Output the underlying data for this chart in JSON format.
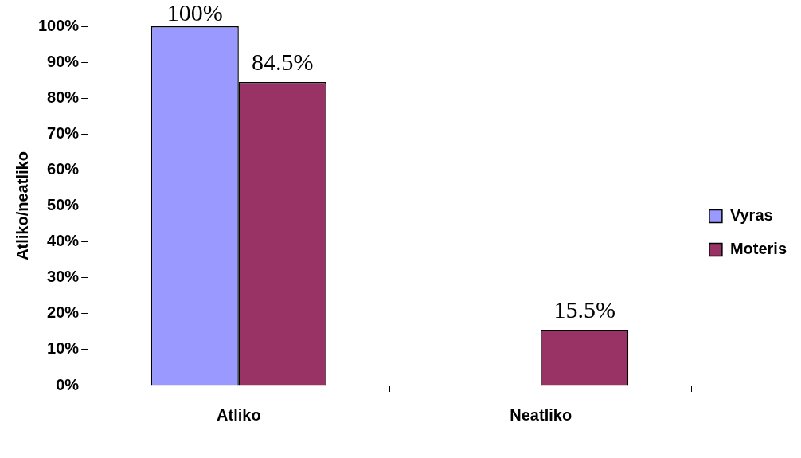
{
  "chart_data": {
    "type": "bar",
    "ylabel": "Atliko/neatliko",
    "categories": [
      "Atliko",
      "Neatliko"
    ],
    "series": [
      {
        "name": "Vyras",
        "color": "#9999ff",
        "values": [
          100,
          0
        ],
        "value_labels": [
          "100%",
          null
        ]
      },
      {
        "name": "Moteris",
        "color": "#993366",
        "values": [
          84.5,
          15.5
        ],
        "value_labels": [
          "84.5%",
          "15.5%"
        ]
      }
    ],
    "ylim": [
      0,
      100
    ],
    "yticks": [
      {
        "value": 0,
        "label": "0%"
      },
      {
        "value": 10,
        "label": "10%"
      },
      {
        "value": 20,
        "label": "20%"
      },
      {
        "value": 30,
        "label": "30%"
      },
      {
        "value": 40,
        "label": "40%"
      },
      {
        "value": 50,
        "label": "50%"
      },
      {
        "value": 60,
        "label": "60%"
      },
      {
        "value": 70,
        "label": "70%"
      },
      {
        "value": 80,
        "label": "80%"
      },
      {
        "value": 90,
        "label": "90%"
      },
      {
        "value": 100,
        "label": "100%"
      }
    ],
    "legend": "right"
  }
}
